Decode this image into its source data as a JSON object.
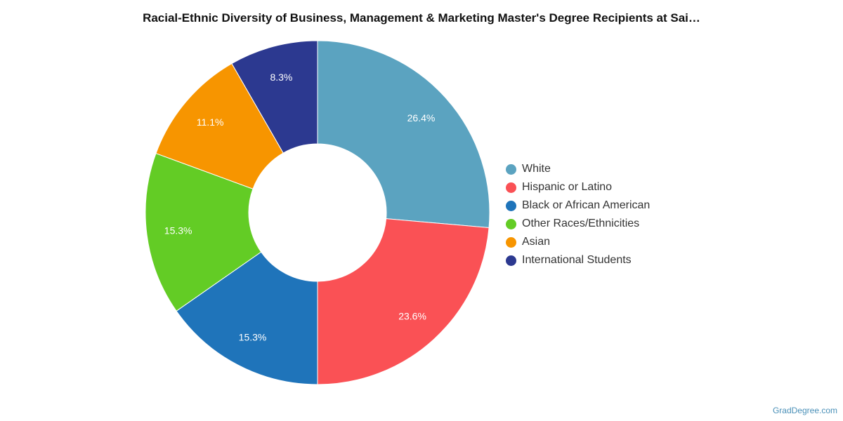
{
  "chart_data": {
    "type": "pie",
    "donut": true,
    "title": "Racial-Ethnic Diversity of Business, Management & Marketing Master's Degree Recipients at Sai…",
    "legend_position": "right",
    "slices": [
      {
        "name": "White",
        "value": 26.4,
        "label": "26.4%",
        "color": "#5ba3c0"
      },
      {
        "name": "Hispanic or Latino",
        "value": 23.6,
        "label": "23.6%",
        "color": "#fa5155"
      },
      {
        "name": "Black or African American",
        "value": 15.3,
        "label": "15.3%",
        "color": "#1f74ba"
      },
      {
        "name": "Other Races/Ethnicities",
        "value": 15.3,
        "label": "15.3%",
        "color": "#63cc25"
      },
      {
        "name": "Asian",
        "value": 11.1,
        "label": "11.1%",
        "color": "#f79500"
      },
      {
        "name": "International Students",
        "value": 8.3,
        "label": "8.3%",
        "color": "#2c3990"
      }
    ]
  },
  "credit": "GradDegree.com"
}
